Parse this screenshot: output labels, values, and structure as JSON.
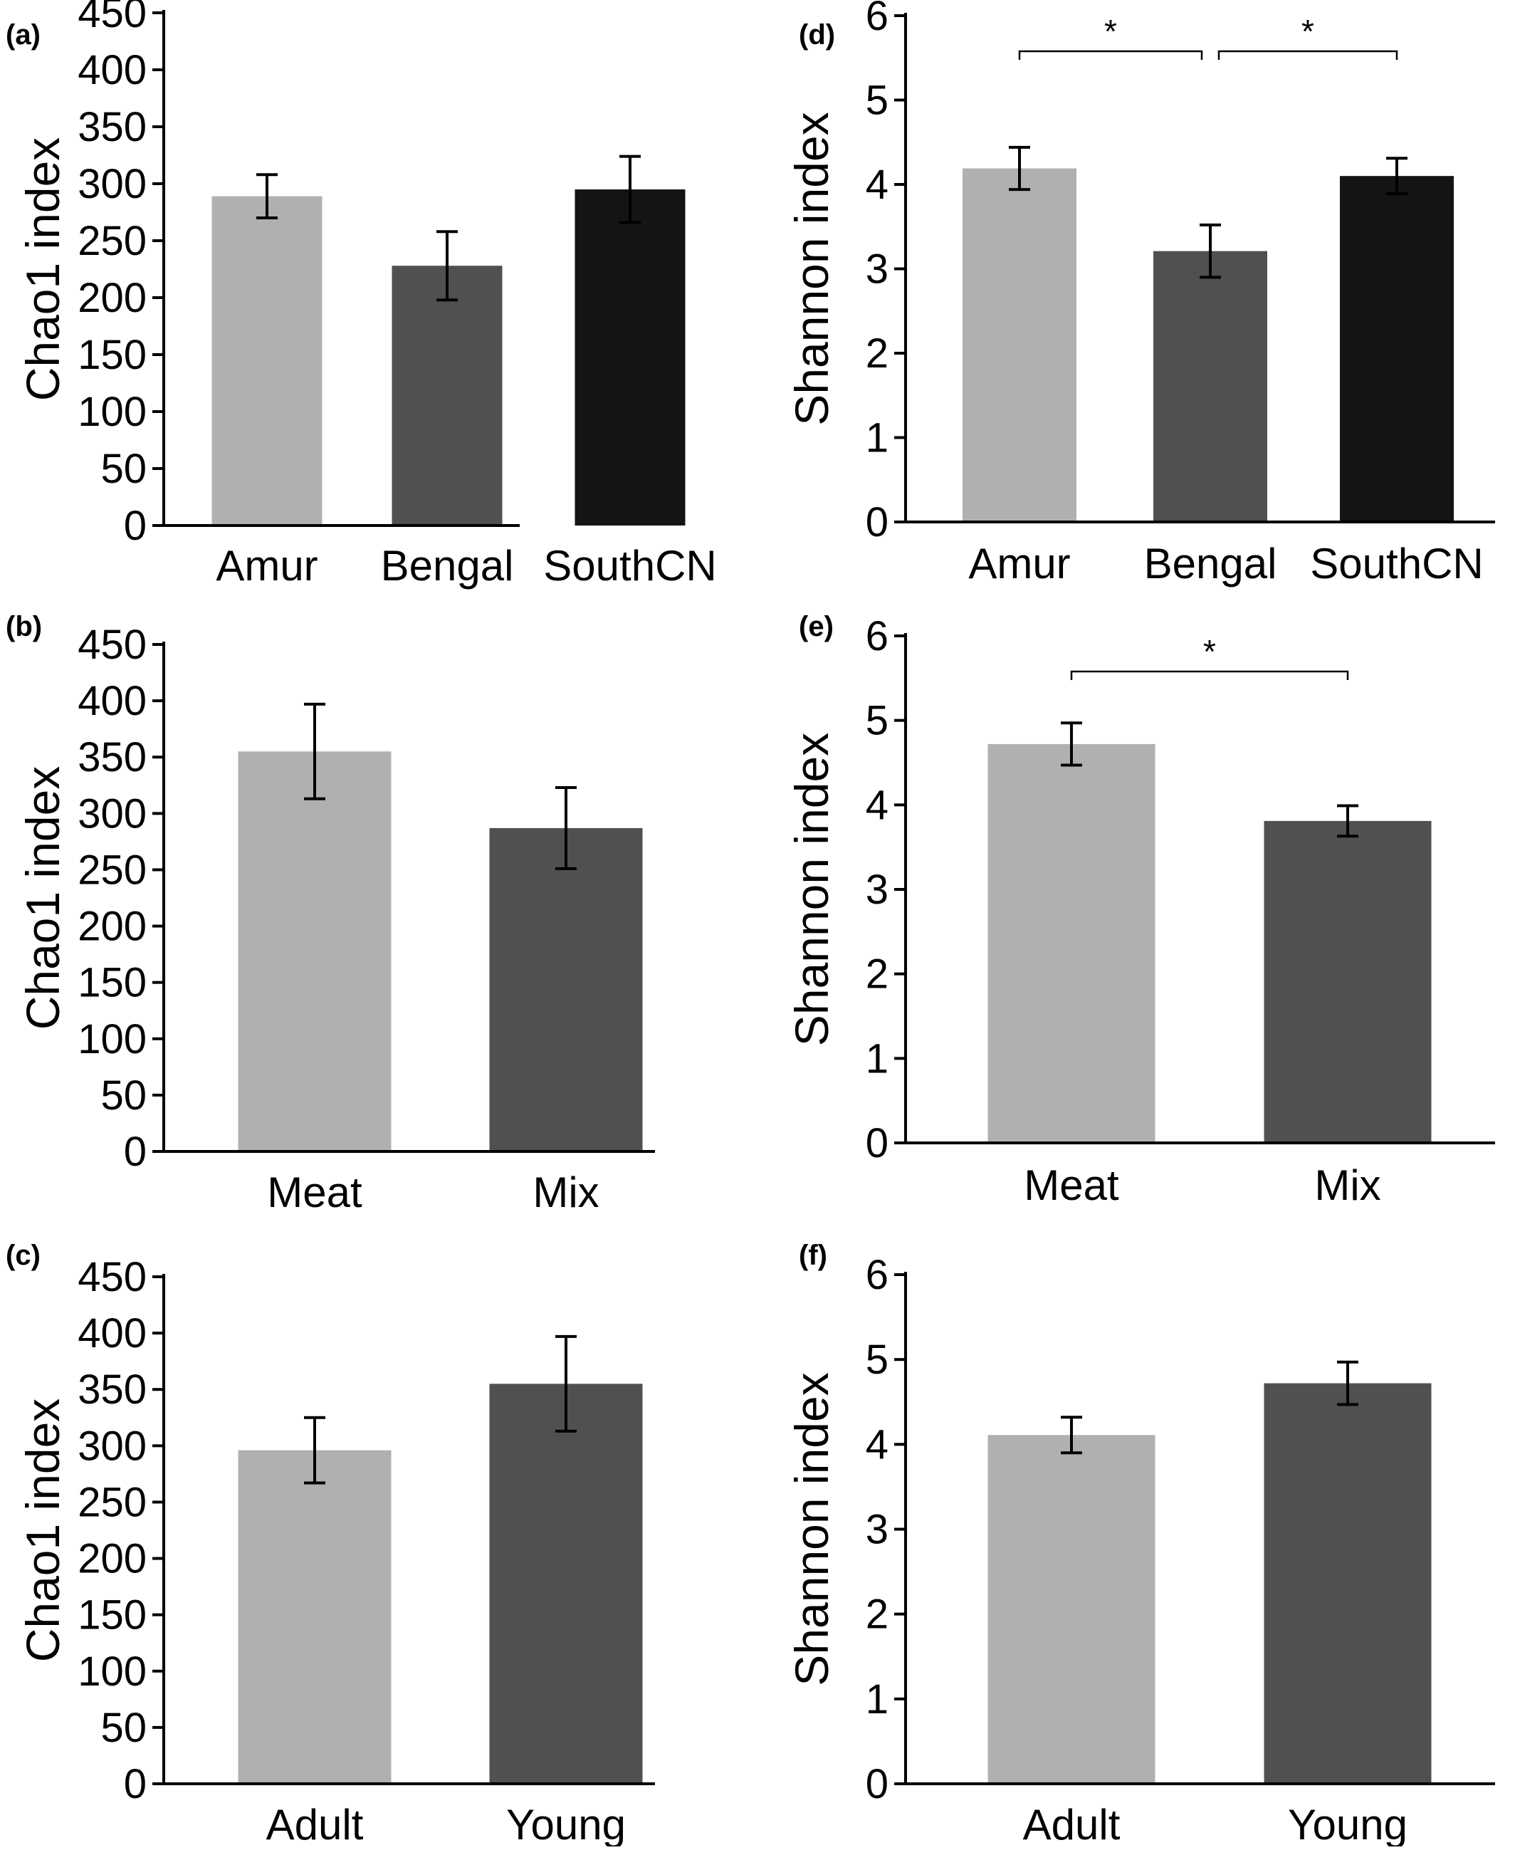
{
  "figure": {
    "panels": [
      {
        "id": "a",
        "tag": "(a)"
      },
      {
        "id": "d",
        "tag": "(d)"
      },
      {
        "id": "b",
        "tag": "(b)"
      },
      {
        "id": "e",
        "tag": "(e)"
      },
      {
        "id": "c",
        "tag": "(c)"
      },
      {
        "id": "f",
        "tag": "(f)"
      }
    ]
  },
  "chart_data": [
    {
      "panel": "(a)",
      "type": "bar",
      "categories": [
        "Amur",
        "Bengal",
        "SouthCN"
      ],
      "values": [
        289,
        228,
        295
      ],
      "errors": [
        19,
        30,
        29
      ],
      "bar_colors": [
        "#b0b0b0",
        "#505050",
        "#141414"
      ],
      "ylabel": "Chao1 index",
      "ylim": [
        0,
        450
      ],
      "yticks": [
        0,
        50,
        100,
        150,
        200,
        250,
        300,
        350,
        400,
        450
      ],
      "significance": []
    },
    {
      "panel": "(d)",
      "type": "bar",
      "categories": [
        "Amur",
        "Bengal",
        "SouthCN"
      ],
      "values": [
        4.19,
        3.21,
        4.1
      ],
      "errors": [
        0.25,
        0.31,
        0.21
      ],
      "bar_colors": [
        "#b0b0b0",
        "#505050",
        "#141414"
      ],
      "ylabel": "Shannon index",
      "ylim": [
        0,
        6
      ],
      "yticks": [
        0,
        1,
        2,
        3,
        4,
        5,
        6
      ],
      "significance": [
        {
          "from": 0,
          "to": 1,
          "label": "*"
        },
        {
          "from": 1,
          "to": 2,
          "label": "*"
        }
      ]
    },
    {
      "panel": "(b)",
      "type": "bar",
      "categories": [
        "Meat",
        "Mix"
      ],
      "values": [
        355,
        287
      ],
      "errors": [
        42,
        36
      ],
      "bar_colors": [
        "#b0b0b0",
        "#505050"
      ],
      "ylabel": "Chao1 index",
      "ylim": [
        0,
        450
      ],
      "yticks": [
        0,
        50,
        100,
        150,
        200,
        250,
        300,
        350,
        400,
        450
      ],
      "significance": []
    },
    {
      "panel": "(e)",
      "type": "bar",
      "categories": [
        "Meat",
        "Mix"
      ],
      "values": [
        4.72,
        3.81
      ],
      "errors": [
        0.25,
        0.18
      ],
      "bar_colors": [
        "#b0b0b0",
        "#505050"
      ],
      "ylabel": "Shannon index",
      "ylim": [
        0,
        6
      ],
      "yticks": [
        0,
        1,
        2,
        3,
        4,
        5,
        6
      ],
      "significance": [
        {
          "from": 0,
          "to": 1,
          "label": "*"
        }
      ]
    },
    {
      "panel": "(c)",
      "type": "bar",
      "categories": [
        "Adult",
        "Young"
      ],
      "values": [
        296,
        355
      ],
      "errors": [
        29,
        42
      ],
      "bar_colors": [
        "#b0b0b0",
        "#505050"
      ],
      "ylabel": "Chao1 index",
      "ylim": [
        0,
        450
      ],
      "yticks": [
        0,
        50,
        100,
        150,
        200,
        250,
        300,
        350,
        400,
        450
      ],
      "significance": []
    },
    {
      "panel": "(f)",
      "type": "bar",
      "categories": [
        "Adult",
        "Young"
      ],
      "values": [
        4.11,
        4.72
      ],
      "errors": [
        0.21,
        0.25
      ],
      "bar_colors": [
        "#b0b0b0",
        "#505050"
      ],
      "ylabel": "Shannon index",
      "ylim": [
        0,
        6
      ],
      "yticks": [
        0,
        1,
        2,
        3,
        4,
        5,
        6
      ],
      "significance": []
    }
  ]
}
